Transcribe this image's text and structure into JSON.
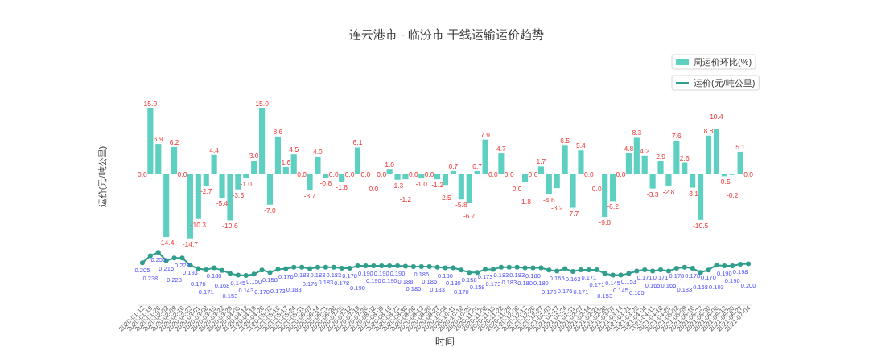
{
  "chart_data": {
    "type": "bar",
    "title": "连云港市 - 临汾市 干线运输运价趋势",
    "xlabel": "时间",
    "ylabel": "运价(元/吨公里)",
    "categories": [
      "2020-01-12",
      "2020-01-19",
      "2020-01-26",
      "2020-02-02",
      "2020-02-09",
      "2020-02-16",
      "2020-02-23",
      "2020-03-01",
      "2020-03-08",
      "2020-03-15",
      "2020-03-22",
      "2020-03-29",
      "2020-04-05",
      "2020-04-12",
      "2020-04-19",
      "2020-04-26",
      "2020-05-03",
      "2020-05-10",
      "2020-05-17",
      "2020-05-24",
      "2020-05-31",
      "2020-06-07",
      "2020-06-14",
      "2020-06-21",
      "2020-06-28",
      "2020-07-05",
      "2020-07-12",
      "2020-07-19",
      "2020-07-26",
      "2020-08-02",
      "2020-08-09",
      "2020-08-16",
      "2020-08-23",
      "2020-08-30",
      "2020-09-06",
      "2020-09-13",
      "2020-09-20",
      "2020-09-27",
      "2020-10-04",
      "2020-10-11",
      "2020-10-18",
      "2020-10-25",
      "2020-11-01",
      "2020-11-08",
      "2020-11-15",
      "2020-11-22",
      "2020-11-29",
      "2020-12-06",
      "2020-12-13",
      "2020-12-20",
      "2020-12-27",
      "2021-01-03",
      "2021-01-17",
      "2021-01-24",
      "2021-01-31",
      "2021-02-07",
      "2021-02-14",
      "2021-02-21",
      "2021-02-28",
      "2021-03-07",
      "2021-03-14",
      "2021-03-21",
      "2021-03-28",
      "2021-04-04",
      "2021-04-11",
      "2021-04-18",
      "2021-04-25",
      "2021-05-02",
      "2021-05-09",
      "2021-05-16",
      "2021-05-23",
      "2021-05-30",
      "2021-06-06",
      "2021-06-13",
      "2021-06-20",
      "2021-06-27",
      "2021-07-04"
    ],
    "series": [
      {
        "name": "周运价环比(%)",
        "color": "#5dd0c2",
        "values": [
          0.0,
          15.0,
          6.9,
          -14.4,
          6.2,
          0.0,
          -14.7,
          -10.3,
          -2.7,
          4.4,
          -5.4,
          -10.6,
          -3.5,
          -1.0,
          3.0,
          15.0,
          -7.0,
          8.6,
          1.6,
          4.5,
          0.0,
          -3.7,
          4.0,
          -0.8,
          0.0,
          -1.8,
          0.0,
          6.1,
          0.0,
          0.0,
          0.0,
          1.0,
          -1.3,
          -1.2,
          0.0,
          -1.0,
          0.0,
          -1.2,
          -2.5,
          0.7,
          -5.8,
          -6.7,
          0.7,
          7.9,
          0.0,
          4.7,
          0.0,
          0.0,
          -1.8,
          0.0,
          1.7,
          -4.6,
          -3.2,
          6.5,
          -7.7,
          5.4,
          0.0,
          0.0,
          -9.8,
          -6.2,
          0.0,
          4.8,
          8.3,
          4.2,
          -3.3,
          2.9,
          -2.8,
          7.6,
          2.6,
          -3.1,
          -10.5,
          8.8,
          10.4,
          -0.5,
          -0.2,
          5.1,
          0.0
        ],
        "value_labels": [
          "0.0",
          "15.0",
          "6.9",
          "-14.4",
          "6.2",
          "0.0",
          "-14.7",
          "-10.3",
          "-2.7",
          "4.4",
          "-5.4",
          "-10.6",
          "-3.5",
          "-1.0",
          "3.0",
          "15.0",
          "-7.0",
          "8.6",
          "1.6",
          "4.5",
          "0.0",
          "-3.7",
          "4.0",
          "-0.8",
          "0.0",
          "-1.8",
          "0.0",
          "6.1",
          "0.0",
          "0.0",
          "0.0",
          "1.0",
          "-1.3",
          "-1.2",
          "0.0",
          "-1.0",
          "0.0",
          "-1.2",
          "-2.5",
          "0.7",
          "-5.8",
          "-6.7",
          "0.7",
          "7.9",
          "0.0",
          "4.7",
          "0.0",
          "0.0",
          "-1.8",
          "0.0",
          "1.7",
          "-4.6",
          "-3.2",
          "6.5",
          "-7.7",
          "5.4",
          "0.0",
          "0.0",
          "-9.8",
          "-6.2",
          "0.0",
          "4.8",
          "8.3",
          "4.2",
          "-3.3",
          "2.9",
          "-2.8",
          "7.6",
          "2.6",
          "-3.1",
          "-10.5",
          "8.8",
          "10.4",
          "-0.5",
          "-0.2",
          "5.1",
          "0.0"
        ]
      },
      {
        "name": "运价(元/吨公里)",
        "type": "line",
        "axis": "y2",
        "color": "#2f9e8c",
        "values": [
          0.205,
          0.238,
          0.255,
          0.215,
          0.228,
          0.228,
          0.193,
          0.176,
          0.171,
          0.18,
          0.168,
          0.153,
          0.145,
          0.143,
          0.15,
          0.17,
          0.158,
          0.173,
          0.176,
          0.183,
          0.183,
          0.176,
          0.183,
          0.183,
          0.183,
          0.178,
          0.178,
          0.19,
          0.19,
          0.19,
          0.19,
          0.19,
          0.19,
          0.188,
          0.186,
          0.186,
          0.186,
          0.183,
          0.18,
          0.18,
          0.17,
          0.158,
          0.158,
          0.173,
          0.173,
          0.183,
          0.183,
          0.183,
          0.18,
          0.18,
          0.18,
          0.17,
          0.165,
          0.176,
          0.163,
          0.171,
          0.171,
          0.171,
          0.153,
          0.145,
          0.145,
          0.153,
          0.165,
          0.171,
          0.165,
          0.171,
          0.165,
          0.178,
          0.183,
          0.178,
          0.158,
          0.17,
          0.193,
          0.19,
          0.19,
          0.198,
          0.2
        ],
        "value_labels": [
          "0.205",
          "0.238",
          "0.255",
          "0.215",
          "0.228",
          "0.228",
          "0.193",
          "0.176",
          "0.171",
          "0.180",
          "0.168",
          "0.153",
          "0.145",
          "0.143",
          "0.150",
          "0.170",
          "0.158",
          "0.173",
          "0.176",
          "0.183",
          "0.183",
          "0.176",
          "0.183",
          "0.183",
          "0.183",
          "0.178",
          "0.178",
          "0.190",
          "0.190",
          "0.190",
          "0.190",
          "0.190",
          "0.190",
          "0.188",
          "0.186",
          "0.186",
          "0.186",
          "0.183",
          "0.180",
          "0.180",
          "0.170",
          "0.158",
          "0.158",
          "0.173",
          "0.173",
          "0.183",
          "0.183",
          "0.183",
          "0.180",
          "0.180",
          "0.180",
          "0.170",
          "0.165",
          "0.176",
          "0.163",
          "0.171",
          "0.171",
          "0.171",
          "0.153",
          "0.145",
          "0.145",
          "0.153",
          "0.165",
          "0.171",
          "0.165",
          "0.171",
          "0.165",
          "0.178",
          "0.183",
          "0.178",
          "0.158",
          "0.170",
          "0.193",
          "0.190",
          "0.190",
          "0.198",
          "0.200"
        ]
      }
    ],
    "ylim": [
      -30,
      15
    ],
    "y2lim": [
      0,
      0.95
    ],
    "tick_labels": "x",
    "marker": "circle",
    "legend": "top right"
  }
}
